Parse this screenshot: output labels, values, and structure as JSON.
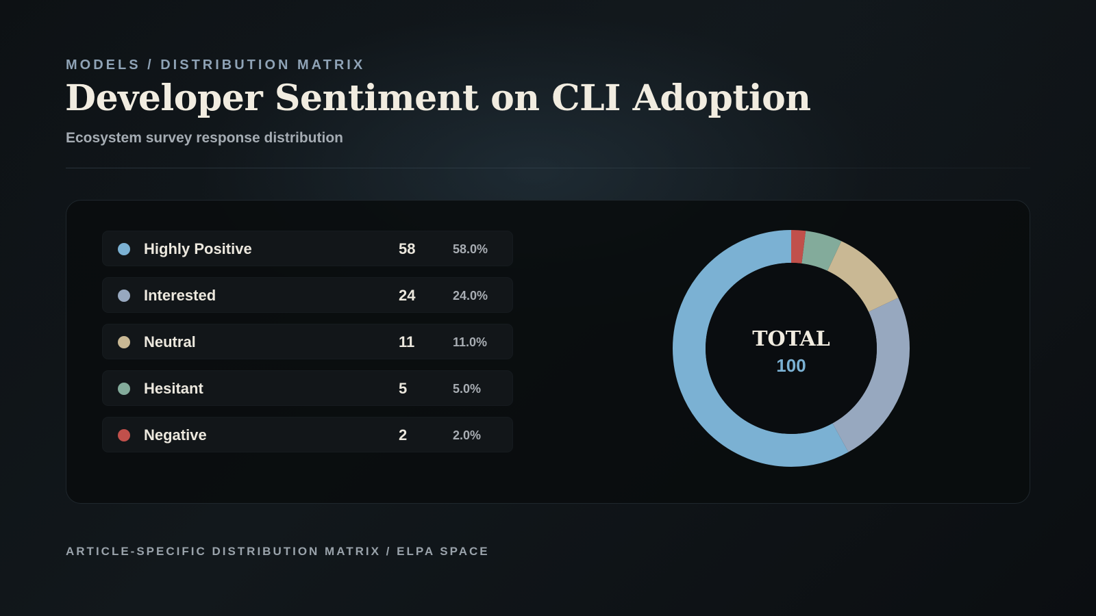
{
  "header": {
    "breadcrumb": "MODELS / DISTRIBUTION MATRIX",
    "title": "Developer Sentiment on CLI Adoption",
    "subtitle": "Ecosystem survey response distribution"
  },
  "footer": {
    "text": "ARTICLE-SPECIFIC DISTRIBUTION MATRIX / ELPA SPACE"
  },
  "chart_data": {
    "type": "pie",
    "title": "Developer Sentiment on CLI Adoption",
    "subtitle": "Ecosystem survey response distribution",
    "center_label": "TOTAL",
    "total": 100,
    "categories": [
      "Highly Positive",
      "Interested",
      "Neutral",
      "Hesitant",
      "Negative"
    ],
    "values": [
      58,
      24,
      11,
      5,
      2
    ],
    "percent_labels": [
      "58.0%",
      "24.0%",
      "11.0%",
      "5.0%",
      "2.0%"
    ],
    "colors": [
      "#7bb1d3",
      "#97a8bf",
      "#c9b894",
      "#83ab9b",
      "#c1504b"
    ],
    "track_color": "#141719",
    "legend_position": "left"
  }
}
